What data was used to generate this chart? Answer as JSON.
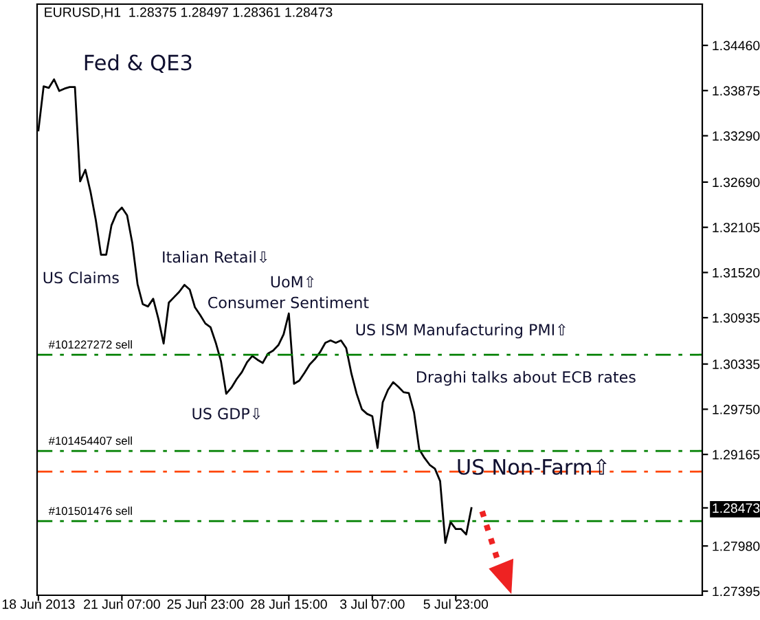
{
  "chart_data": {
    "type": "line",
    "title": "EURUSD,H1  1.28375 1.28497 1.28361 1.28473",
    "categories": [
      "18 Jun 2013",
      null,
      null,
      null,
      null,
      null,
      null,
      null,
      null,
      null,
      null,
      null,
      null,
      null,
      null,
      null,
      "21 Jun 07:00",
      null,
      null,
      null,
      null,
      null,
      null,
      null,
      null,
      null,
      null,
      null,
      null,
      null,
      null,
      null,
      "25 Jun 23:00",
      null,
      null,
      null,
      null,
      null,
      null,
      null,
      null,
      null,
      null,
      null,
      null,
      null,
      null,
      null,
      "28 Jun 15:00",
      null,
      null,
      null,
      null,
      null,
      null,
      null,
      null,
      null,
      null,
      null,
      null,
      null,
      null,
      null,
      "3 Jul 07:00",
      null,
      null,
      null,
      null,
      null,
      null,
      null,
      null,
      null,
      null,
      null,
      null,
      null,
      null,
      null,
      "5 Jul 23:00",
      null,
      null,
      null,
      null,
      null,
      null,
      null,
      null,
      null,
      null,
      null,
      null,
      null,
      null,
      null,
      null,
      null,
      null,
      null,
      null,
      null,
      null,
      null,
      null,
      null,
      null,
      null,
      null,
      null,
      null,
      null,
      null,
      null,
      null,
      null,
      null,
      null,
      null,
      null,
      null,
      null,
      null,
      null,
      null,
      null,
      null,
      null
    ],
    "series": [
      {
        "color": "#000000",
        "values": [
          1.3336,
          1.3393,
          1.3391,
          1.3402,
          1.3387,
          1.339,
          1.3392,
          1.3392,
          1.327,
          1.3285,
          1.3256,
          1.322,
          1.3175,
          1.3175,
          1.3213,
          1.3229,
          1.3236,
          1.3226,
          1.319,
          1.3137,
          1.3111,
          1.3108,
          1.3118,
          1.3092,
          1.306,
          1.3113,
          1.312,
          1.3127,
          1.3136,
          1.313,
          1.3107,
          1.3097,
          1.3086,
          1.3081,
          1.3061,
          1.3037,
          1.2995,
          1.3003,
          1.3014,
          1.3023,
          1.3036,
          1.3044,
          1.3039,
          1.3035,
          1.3047,
          1.3051,
          1.3058,
          1.3072,
          1.3099,
          1.3008,
          1.3012,
          1.3022,
          1.3033,
          1.304,
          1.3049,
          1.3061,
          1.3064,
          1.3061,
          1.3064,
          1.3054,
          1.3021,
          1.2995,
          1.2975,
          1.2969,
          1.2966,
          1.2925,
          1.2984,
          1.3,
          1.301,
          1.3004,
          1.2997,
          1.2996,
          1.2971,
          1.2923,
          1.2912,
          1.2903,
          1.2898,
          1.2882,
          1.2802,
          1.2829,
          1.282,
          1.282,
          1.2813,
          1.2847,
          null,
          null,
          null,
          null,
          null,
          null,
          null,
          null,
          null,
          null,
          null,
          null,
          null,
          null,
          null,
          null,
          null,
          null,
          null,
          null,
          null,
          null,
          null,
          null,
          null,
          null,
          null,
          null,
          null,
          null,
          null,
          null,
          null,
          null,
          null,
          null,
          null,
          null,
          null,
          null,
          null,
          null,
          null,
          null
        ]
      }
    ],
    "ylim": [
      1.27342,
      1.34994
    ],
    "yticks": [
      {
        "value": 1.3446,
        "label": "1.34460"
      },
      1.33875,
      {
        "value": 1.3329,
        "label": "1.33290"
      },
      {
        "value": 1.3269,
        "label": "1.32690"
      },
      1.32105,
      {
        "value": 1.3152,
        "label": "1.31520"
      },
      1.30935,
      1.30335,
      {
        "value": 1.2975,
        "label": "1.29750"
      },
      1.29165,
      {
        "value": 1.2798,
        "label": "1.27980"
      },
      1.27395,
      1.28473
    ],
    "ref_lines": [
      {
        "axis": "y",
        "value": 1.30456,
        "label": "#101227272 sell",
        "color": "#008000",
        "line_style": "dashed"
      },
      {
        "axis": "y",
        "value": 1.2921,
        "label": "#101454407 sell",
        "color": "#008000",
        "line_style": "dashed"
      },
      {
        "axis": "y",
        "value": 1.28943,
        "color": "#ff4500",
        "line_style": "dashed"
      },
      {
        "axis": "y",
        "value": 1.28302,
        "label": "#101501476 sell",
        "color": "#008000",
        "line_style": "dashed"
      }
    ],
    "annotations": [
      "Fed & QE3",
      "US Claims",
      "Italian Retail⇩",
      "UoM⇧",
      "Consumer Sentiment",
      "US ISM Manufacturing PMI⇧",
      "Draghi talks about ECB rates",
      "US GDP⇩",
      "US Non-Farm⇧"
    ],
    "grid": false,
    "legend": false,
    "marker": "none",
    "line_style": "solid"
  }
}
